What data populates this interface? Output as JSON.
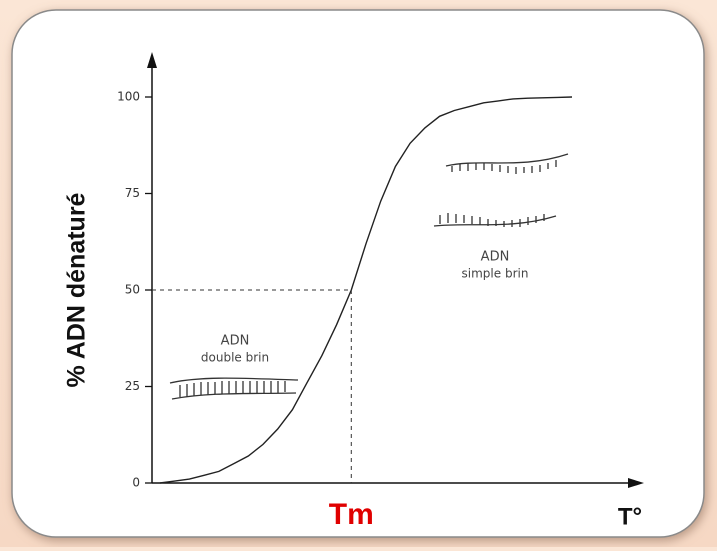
{
  "chart_data": {
    "type": "line",
    "ylabel": "% ADN dénaturé",
    "xlabel": "T°",
    "categories": [
      null,
      null,
      null,
      null,
      null,
      null,
      null,
      null,
      null,
      null,
      null,
      null,
      null,
      null,
      null,
      null,
      null,
      null,
      null,
      null,
      null,
      null,
      null,
      null,
      null,
      null,
      null,
      null,
      null
    ],
    "values": [
      0,
      0.5,
      1,
      2,
      3,
      5,
      7,
      10,
      14,
      19,
      26,
      33,
      41,
      50,
      62,
      73,
      82,
      88,
      92,
      95,
      96.5,
      97.5,
      98.5,
      99,
      99.5,
      99.7,
      99.8,
      99.9,
      100
    ],
    "color": "#222222",
    "ylim": [
      0,
      100
    ],
    "yticks": [
      0,
      25,
      50,
      75,
      100
    ],
    "annotations": {
      "tm": "Tm",
      "double_strand": [
        "ADN",
        "double brin"
      ],
      "single_strand": [
        "ADN",
        "simple brin"
      ]
    }
  }
}
